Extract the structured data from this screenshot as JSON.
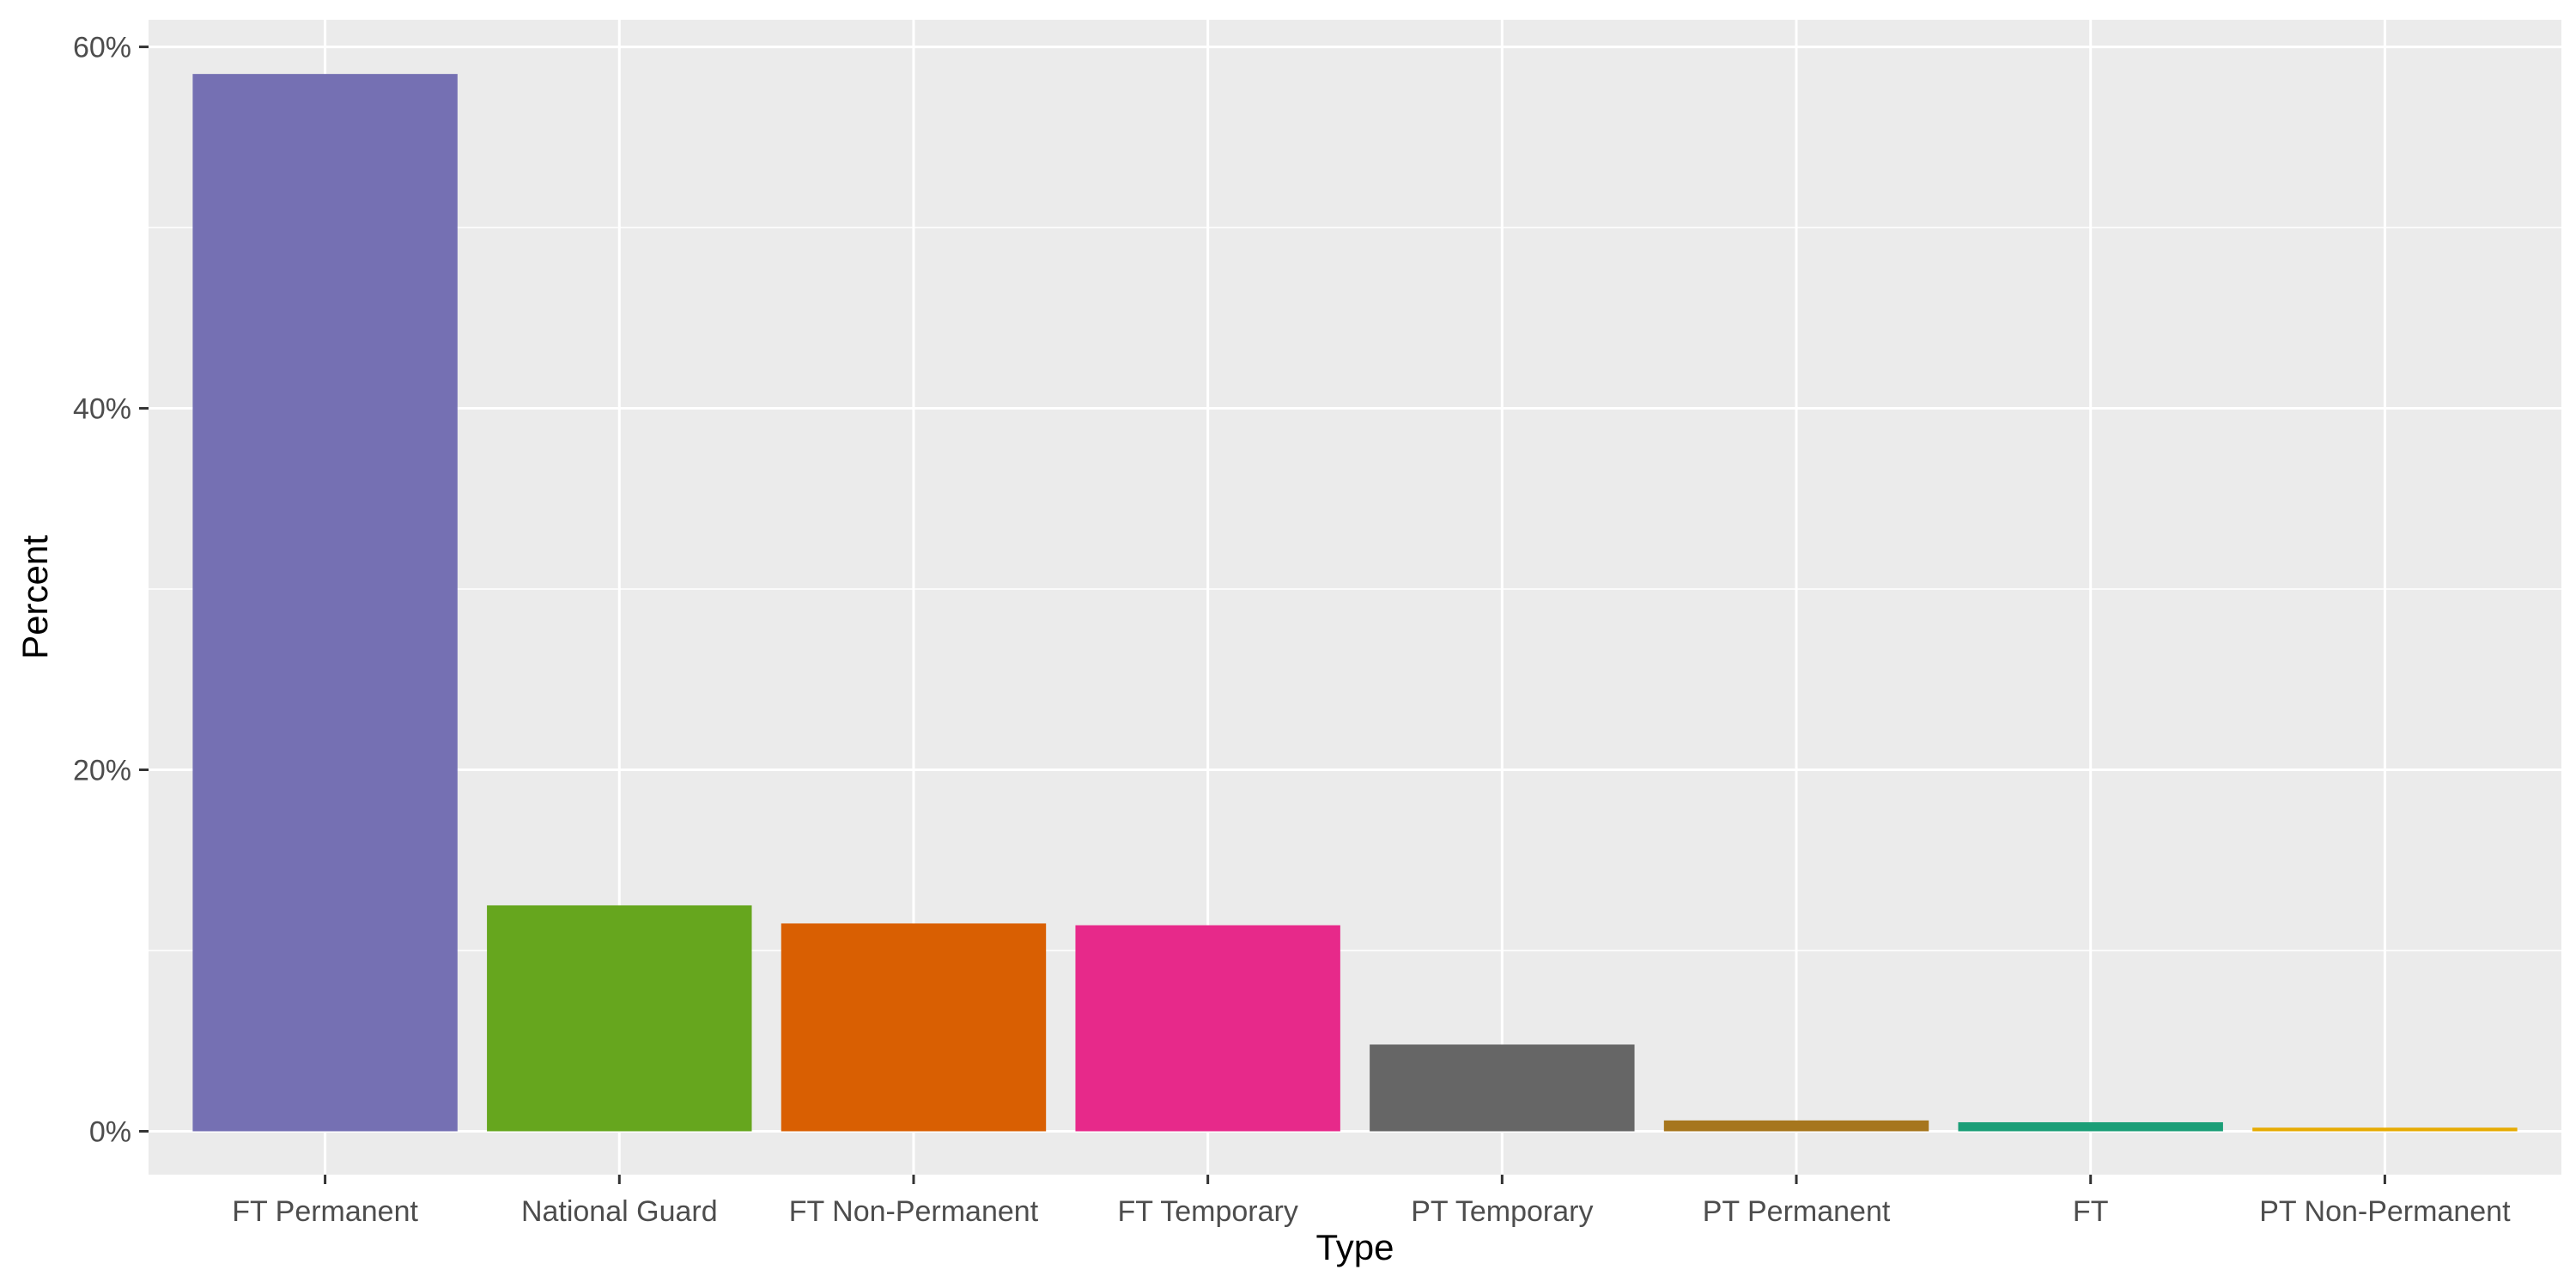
{
  "chart_data": {
    "type": "bar",
    "title": "",
    "xlabel": "Type",
    "ylabel": "Percent",
    "categories": [
      "FT Permanent",
      "National Guard",
      "FT Non-Permanent",
      "FT Temporary",
      "PT Temporary",
      "PT Permanent",
      "FT",
      "PT Non-Permanent"
    ],
    "values": [
      58.5,
      12.5,
      11.5,
      11.4,
      4.8,
      0.6,
      0.5,
      0.2
    ],
    "colors": [
      "#7570B3",
      "#66A61E",
      "#D95F02",
      "#E7298A",
      "#666666",
      "#A6761D",
      "#1B9E77",
      "#E6AB02"
    ],
    "ylim": [
      -2.4,
      61.5
    ],
    "yticks": [
      0,
      20,
      40,
      60
    ],
    "ytick_labels": [
      "0%",
      "20%",
      "40%",
      "60%"
    ],
    "grid": true,
    "legend": "none",
    "background": "#EBEBEB"
  }
}
